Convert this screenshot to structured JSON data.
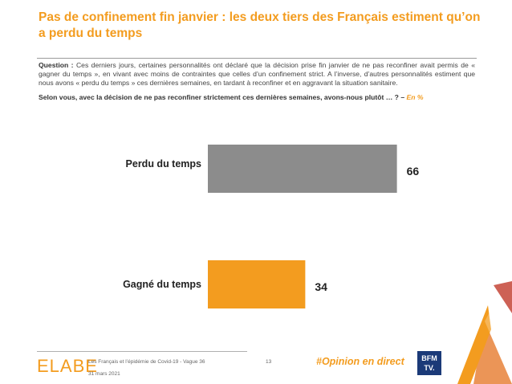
{
  "title": "Pas de confinement fin janvier : les deux tiers des Français estiment qu’on a perdu du temps",
  "question": {
    "label": "Question :",
    "text": "Ces derniers jours, certaines personnalités ont déclaré que la décision prise fin janvier de ne pas reconfiner avait permis de « gagner du temps », en vivant avec moins de contraintes que celles d’un confinement strict. A l’inverse, d’autres personnalités estiment que nous avons « perdu du temps » ces dernières semaines, en tardant à reconfiner et en aggravant la situation sanitaire.",
    "ask": "Selon vous, avec la décision de ne pas reconfiner strictement ces dernières semaines, avons-nous plutôt … ? –",
    "unit": "En %"
  },
  "chart_data": {
    "type": "bar",
    "orientation": "horizontal",
    "categories": [
      "Perdu du temps",
      "Gagné du temps"
    ],
    "values": [
      66,
      34
    ],
    "colors": [
      "#8c8c8c",
      "#f39c1f"
    ],
    "unit": "En %",
    "xlim": [
      0,
      100
    ]
  },
  "footer": {
    "logo": "ELABE",
    "source": "Les Français et l’épidémie de Covid-19 - Vague 36",
    "date": "31 mars 2021",
    "page": "13",
    "hashtag": "#Opinion en direct",
    "bfm_line1": "BFM",
    "bfm_line2": "TV."
  }
}
